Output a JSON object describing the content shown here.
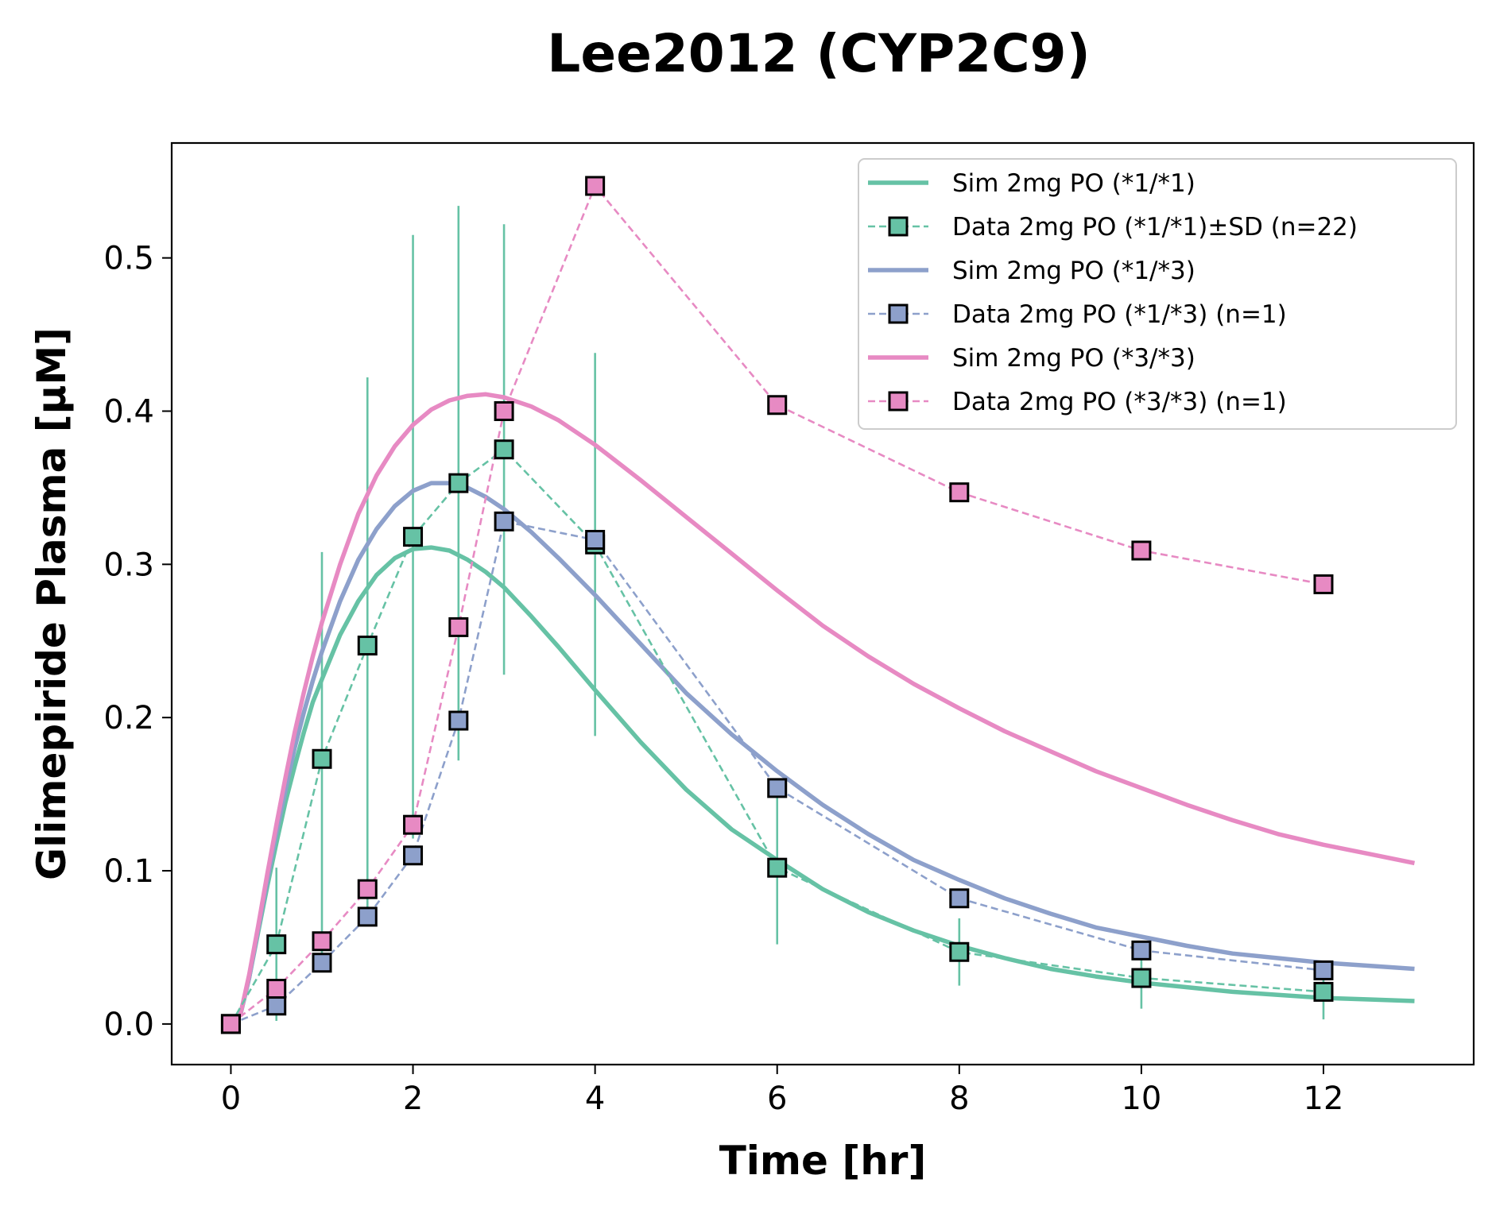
{
  "chart_data": {
    "type": "line",
    "title": "Lee2012 (CYP2C9)",
    "xlabel": "Time [hr]",
    "ylabel": "Glimepiride Plasma [µM]",
    "xlim": [
      -0.65,
      13.65
    ],
    "ylim": [
      -0.0265,
      0.575
    ],
    "xticks": [
      "0",
      "2",
      "4",
      "6",
      "8",
      "10",
      "12"
    ],
    "yticks": [
      "0.0",
      "0.1",
      "0.2",
      "0.3",
      "0.4",
      "0.5"
    ],
    "grid": false,
    "legend_position": "top-right",
    "series": [
      {
        "name": "Sim 2mg PO (*1/*1)",
        "kind": "simulation",
        "color": "#66c2a5",
        "x": [
          0.1,
          0.2,
          0.3,
          0.4,
          0.5,
          0.6,
          0.7,
          0.8,
          0.9,
          1.0,
          1.2,
          1.4,
          1.6,
          1.8,
          2.0,
          2.2,
          2.4,
          2.6,
          2.8,
          3.0,
          3.3,
          3.6,
          4.0,
          4.5,
          5.0,
          5.5,
          6.0,
          6.5,
          7.0,
          7.5,
          8.0,
          8.5,
          9.0,
          9.5,
          10.0,
          10.5,
          11.0,
          11.5,
          12.0,
          12.5,
          13.0
        ],
        "y": [
          0.005,
          0.03,
          0.06,
          0.09,
          0.118,
          0.145,
          0.168,
          0.19,
          0.21,
          0.225,
          0.254,
          0.276,
          0.293,
          0.304,
          0.31,
          0.311,
          0.309,
          0.303,
          0.295,
          0.285,
          0.266,
          0.246,
          0.218,
          0.184,
          0.153,
          0.127,
          0.107,
          0.088,
          0.073,
          0.061,
          0.051,
          0.043,
          0.036,
          0.031,
          0.027,
          0.024,
          0.021,
          0.019,
          0.017,
          0.016,
          0.015
        ]
      },
      {
        "name": "Data 2mg PO (*1/*1)±SD (n=22)",
        "kind": "data",
        "color": "#66c2a5",
        "x": [
          0,
          0.5,
          1,
          1.5,
          2,
          2.5,
          3,
          4,
          6,
          8,
          10,
          12
        ],
        "y": [
          0.0,
          0.052,
          0.173,
          0.247,
          0.318,
          0.353,
          0.375,
          0.313,
          0.102,
          0.047,
          0.03,
          0.021
        ],
        "sd": [
          0.0,
          0.05,
          0.135,
          0.175,
          0.197,
          0.181,
          0.147,
          0.125,
          0.05,
          0.022,
          0.02,
          0.018
        ]
      },
      {
        "name": "Sim 2mg PO (*1/*3)",
        "kind": "simulation",
        "color": "#8da0cb",
        "x": [
          0.1,
          0.2,
          0.3,
          0.4,
          0.5,
          0.6,
          0.7,
          0.8,
          0.9,
          1.0,
          1.2,
          1.4,
          1.6,
          1.8,
          2.0,
          2.2,
          2.4,
          2.6,
          2.8,
          3.0,
          3.3,
          3.6,
          4.0,
          4.5,
          5.0,
          5.5,
          6.0,
          6.5,
          7.0,
          7.5,
          8.0,
          8.5,
          9.0,
          9.5,
          10.0,
          10.5,
          11.0,
          11.5,
          12.0,
          12.5,
          13.0
        ],
        "y": [
          0.005,
          0.03,
          0.062,
          0.094,
          0.125,
          0.153,
          0.18,
          0.203,
          0.224,
          0.243,
          0.276,
          0.303,
          0.323,
          0.338,
          0.348,
          0.353,
          0.353,
          0.35,
          0.344,
          0.336,
          0.321,
          0.304,
          0.28,
          0.248,
          0.216,
          0.189,
          0.165,
          0.143,
          0.124,
          0.107,
          0.094,
          0.082,
          0.072,
          0.063,
          0.057,
          0.051,
          0.046,
          0.043,
          0.04,
          0.038,
          0.036
        ]
      },
      {
        "name": "Data 2mg PO (*1/*3) (n=1)",
        "kind": "data",
        "color": "#8da0cb",
        "x": [
          0,
          0.5,
          1,
          1.5,
          2,
          2.5,
          3,
          4,
          6,
          8,
          10,
          12
        ],
        "y": [
          0.0,
          0.012,
          0.04,
          0.07,
          0.11,
          0.198,
          0.328,
          0.316,
          0.154,
          0.082,
          0.048,
          0.035
        ]
      },
      {
        "name": "Sim 2mg PO (*3/*3)",
        "kind": "simulation",
        "color": "#e78ac3",
        "x": [
          0.1,
          0.2,
          0.3,
          0.4,
          0.5,
          0.6,
          0.7,
          0.8,
          0.9,
          1.0,
          1.2,
          1.4,
          1.6,
          1.8,
          2.0,
          2.2,
          2.4,
          2.6,
          2.8,
          3.0,
          3.3,
          3.6,
          4.0,
          4.5,
          5.0,
          5.5,
          6.0,
          6.5,
          7.0,
          7.5,
          8.0,
          8.5,
          9.0,
          9.5,
          10.0,
          10.5,
          11.0,
          11.5,
          12.0,
          12.5,
          13.0
        ],
        "y": [
          0.005,
          0.032,
          0.064,
          0.098,
          0.13,
          0.161,
          0.19,
          0.216,
          0.24,
          0.262,
          0.3,
          0.333,
          0.358,
          0.377,
          0.391,
          0.401,
          0.407,
          0.41,
          0.411,
          0.409,
          0.403,
          0.394,
          0.378,
          0.355,
          0.331,
          0.307,
          0.283,
          0.26,
          0.24,
          0.222,
          0.206,
          0.191,
          0.178,
          0.165,
          0.154,
          0.143,
          0.133,
          0.124,
          0.117,
          0.111,
          0.105
        ]
      },
      {
        "name": "Data 2mg PO (*3/*3) (n=1)",
        "kind": "data",
        "color": "#e78ac3",
        "x": [
          0,
          0.5,
          1,
          1.5,
          2,
          2.5,
          3,
          4,
          6,
          8,
          10,
          12
        ],
        "y": [
          0.0,
          0.023,
          0.054,
          0.088,
          0.13,
          0.259,
          0.4,
          0.547,
          0.404,
          0.347,
          0.309,
          0.287
        ]
      }
    ]
  }
}
